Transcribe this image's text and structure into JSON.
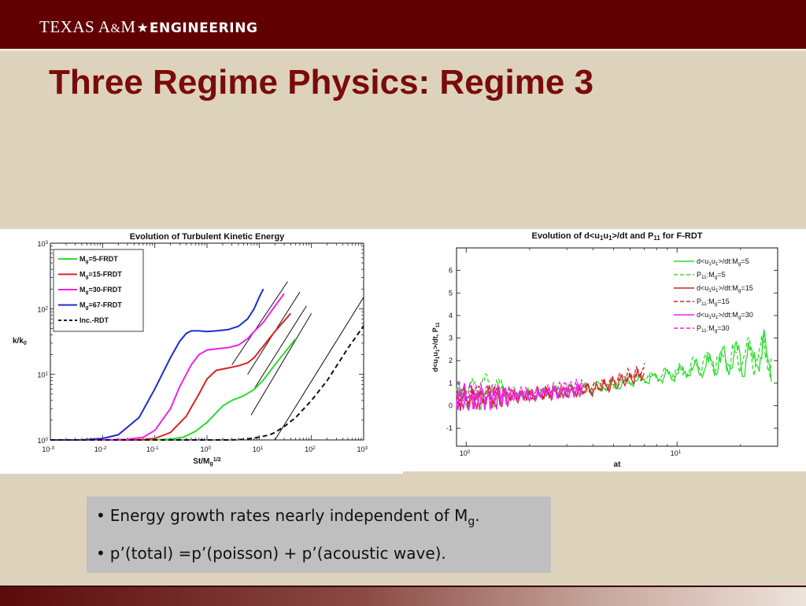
{
  "header": {
    "logo_texas": "TEXAS A",
    "logo_amp": "&",
    "logo_m": "M",
    "logo_star": "★",
    "logo_engineering": "ENGINEERING"
  },
  "slide": {
    "title": "Three Regime Physics: Regime 3"
  },
  "bullets": {
    "item1_text": "Energy growth rates  nearly independent of M",
    "item1_sub": "g",
    "item1_end": ".",
    "item2_text": "p’(total)  =p’(poisson) + p’(acoustic wave)."
  },
  "colors": {
    "green": "#2ddc2d",
    "red": "#d42626",
    "magenta": "#ee22ee",
    "blue": "#1c2ecc",
    "black": "#111111"
  },
  "chart_data": [
    {
      "type": "line",
      "title": "Evolution of Turbulent Kinetic Energy",
      "xlabel": "St/M_g^1/2",
      "ylabel": "k/k_0",
      "xscale": "log",
      "yscale": "log",
      "xlim": [
        0.001,
        1000
      ],
      "ylim": [
        1,
        1000
      ],
      "x_ticks": [
        0.001,
        0.01,
        0.1,
        1,
        10,
        100,
        1000
      ],
      "y_ticks": [
        1,
        10,
        100,
        1000
      ],
      "legend_position": "top-left",
      "grid": false,
      "series": [
        {
          "name": "M_g=5-FRDT",
          "color": "#2ddc2d",
          "style": "solid",
          "x": [
            0.001,
            0.01,
            0.1,
            0.2,
            0.35,
            0.6,
            1,
            1.5,
            2,
            3,
            5,
            8,
            12,
            20,
            30,
            40,
            50
          ],
          "y": [
            1,
            1,
            1,
            1.03,
            1.1,
            1.35,
            1.85,
            2.6,
            3.3,
            4,
            4.7,
            5.9,
            8.2,
            14,
            21,
            28,
            35
          ]
        },
        {
          "name": "M_g=15-FRDT",
          "color": "#d42626",
          "style": "solid",
          "x": [
            0.001,
            0.01,
            0.05,
            0.1,
            0.2,
            0.4,
            0.7,
            1,
            1.5,
            2.5,
            4,
            6,
            8,
            12,
            20,
            30,
            40
          ],
          "y": [
            1,
            1,
            1,
            1.05,
            1.3,
            2.3,
            5,
            8.5,
            11.5,
            12.5,
            13.5,
            15,
            18,
            27,
            45,
            65,
            85
          ]
        },
        {
          "name": "M_g=30-FRDT",
          "color": "#ee22ee",
          "style": "solid",
          "x": [
            0.001,
            0.01,
            0.03,
            0.06,
            0.1,
            0.2,
            0.3,
            0.5,
            0.7,
            1,
            1.5,
            2.5,
            4,
            6,
            8,
            12,
            20,
            30
          ],
          "y": [
            1,
            1,
            1.02,
            1.1,
            1.4,
            3,
            6.5,
            14,
            20,
            23.5,
            24.5,
            25.5,
            28,
            35,
            45,
            62,
            110,
            170
          ]
        },
        {
          "name": "M_g=67-FRDT",
          "color": "#1c2ecc",
          "style": "solid",
          "x": [
            0.001,
            0.004,
            0.01,
            0.02,
            0.05,
            0.1,
            0.2,
            0.3,
            0.4,
            0.5,
            0.7,
            1,
            1.5,
            2.5,
            4,
            6,
            8,
            10,
            12
          ],
          "y": [
            1,
            1,
            1.05,
            1.2,
            2.2,
            6,
            18,
            32,
            42,
            46,
            46,
            45,
            46,
            48,
            54,
            70,
            100,
            150,
            200
          ]
        },
        {
          "name": "Inc.-RDT",
          "color": "#111111",
          "style": "dashed",
          "x": [
            0.001,
            1,
            2,
            3,
            5,
            8,
            12,
            16,
            20,
            30,
            50,
            100,
            200,
            500,
            1000
          ],
          "y": [
            1,
            1,
            1,
            1,
            1.02,
            1.07,
            1.14,
            1.2,
            1.3,
            1.6,
            2.2,
            4,
            8,
            25,
            55
          ]
        }
      ],
      "annotations": [
        {
          "type": "slope-line",
          "x": [
            3,
            35
          ],
          "y": [
            14,
            260
          ]
        },
        {
          "type": "slope-line",
          "x": [
            6,
            60
          ],
          "y": [
            10,
            180
          ]
        },
        {
          "type": "slope-line",
          "x": [
            8,
            80
          ],
          "y": [
            6,
            110
          ]
        },
        {
          "type": "slope-line",
          "x": [
            7,
            100
          ],
          "y": [
            2.4,
            85
          ]
        },
        {
          "type": "slope-line",
          "x": [
            20,
            1000
          ],
          "y": [
            1,
            150
          ]
        }
      ]
    },
    {
      "type": "line",
      "title": "Evolution of d<u_1u_1>/dt and P_11 for F-RDT",
      "xlabel": "at",
      "ylabel": "d<u_1u_1>/dt, P_11",
      "xscale": "log",
      "xlim": [
        0.9,
        30
      ],
      "ylim": [
        -1.8,
        7
      ],
      "x_ticks": [
        1,
        10
      ],
      "y_ticks": [
        -1,
        0,
        1,
        2,
        3,
        4,
        5,
        6
      ],
      "legend_position": "top-right",
      "grid": false,
      "series": [
        {
          "name": "d<u_1u_1>/dt:M_g=5",
          "color": "#2ddc2d",
          "style": "solid",
          "x_range": [
            0.9,
            28
          ],
          "trend": [
            [
              0.9,
              0.3
            ],
            [
              2,
              0.5
            ],
            [
              5,
              0.9
            ],
            [
              10,
              1.4
            ],
            [
              15,
              1.9
            ],
            [
              20,
              2.1
            ],
            [
              28,
              2.3
            ]
          ]
        },
        {
          "name": "P_11:M_g=5",
          "color": "#2ddc2d",
          "style": "dashed",
          "x_range": [
            0.9,
            28
          ],
          "trend": [
            [
              0.9,
              0.55
            ],
            [
              1.2,
              1.05
            ],
            [
              2,
              0.45
            ],
            [
              5,
              0.95
            ],
            [
              10,
              1.5
            ],
            [
              15,
              2
            ],
            [
              20,
              2.2
            ],
            [
              28,
              2.4
            ]
          ]
        },
        {
          "name": "d<u_1u_1>/dt:M_g=15",
          "color": "#d42626",
          "style": "solid",
          "x_range": [
            0.9,
            7
          ],
          "trend": [
            [
              0.9,
              0.3
            ],
            [
              2,
              0.45
            ],
            [
              4,
              0.7
            ],
            [
              7,
              1.4
            ]
          ]
        },
        {
          "name": "P_11:M_g=15",
          "color": "#d42626",
          "style": "dashed",
          "x_range": [
            0.9,
            7
          ],
          "trend": [
            [
              0.9,
              0.4
            ],
            [
              2,
              0.5
            ],
            [
              4,
              0.8
            ],
            [
              7,
              1.6
            ]
          ]
        },
        {
          "name": "d<u_1u_1>/dt:M_g=30",
          "color": "#ee22ee",
          "style": "solid",
          "x_range": [
            0.9,
            3.6
          ],
          "trend": [
            [
              0.9,
              0.2
            ],
            [
              2,
              0.45
            ],
            [
              3.6,
              0.7
            ]
          ]
        },
        {
          "name": "P_11:M_g=30",
          "color": "#ee22ee",
          "style": "dashed",
          "x_range": [
            0.9,
            3.6
          ],
          "trend": [
            [
              0.9,
              0.6
            ],
            [
              2,
              0.55
            ],
            [
              3.6,
              0.95
            ]
          ]
        }
      ]
    }
  ]
}
